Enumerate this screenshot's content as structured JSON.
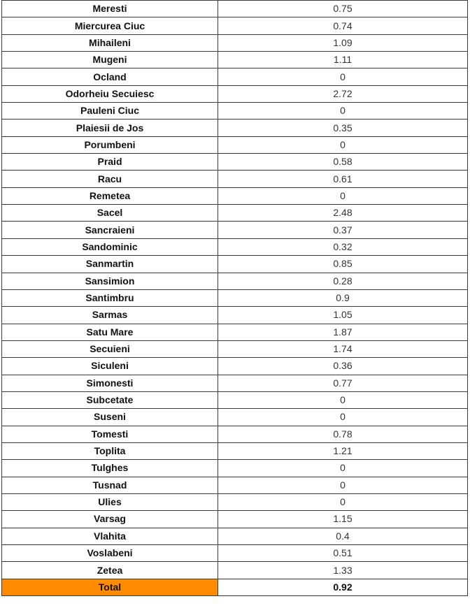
{
  "table": {
    "rows": [
      {
        "name": "Meresti",
        "value": "0.75"
      },
      {
        "name": "Miercurea Ciuc",
        "value": "0.74"
      },
      {
        "name": "Mihaileni",
        "value": "1.09"
      },
      {
        "name": "Mugeni",
        "value": "1.11"
      },
      {
        "name": "Ocland",
        "value": "0"
      },
      {
        "name": "Odorheiu Secuiesc",
        "value": "2.72"
      },
      {
        "name": "Pauleni Ciuc",
        "value": "0"
      },
      {
        "name": "Plaiesii de Jos",
        "value": "0.35"
      },
      {
        "name": "Porumbeni",
        "value": "0"
      },
      {
        "name": "Praid",
        "value": "0.58"
      },
      {
        "name": "Racu",
        "value": "0.61"
      },
      {
        "name": "Remetea",
        "value": "0"
      },
      {
        "name": "Sacel",
        "value": "2.48"
      },
      {
        "name": "Sancraieni",
        "value": "0.37"
      },
      {
        "name": "Sandominic",
        "value": "0.32"
      },
      {
        "name": "Sanmartin",
        "value": "0.85"
      },
      {
        "name": "Sansimion",
        "value": "0.28"
      },
      {
        "name": "Santimbru",
        "value": "0.9"
      },
      {
        "name": "Sarmas",
        "value": "1.05"
      },
      {
        "name": "Satu Mare",
        "value": "1.87"
      },
      {
        "name": "Secuieni",
        "value": "1.74"
      },
      {
        "name": "Siculeni",
        "value": "0.36"
      },
      {
        "name": "Simonesti",
        "value": "0.77"
      },
      {
        "name": "Subcetate",
        "value": "0"
      },
      {
        "name": "Suseni",
        "value": "0"
      },
      {
        "name": "Tomesti",
        "value": "0.78"
      },
      {
        "name": "Toplita",
        "value": "1.21"
      },
      {
        "name": "Tulghes",
        "value": "0"
      },
      {
        "name": "Tusnad",
        "value": "0"
      },
      {
        "name": "Ulies",
        "value": "0"
      },
      {
        "name": "Varsag",
        "value": "1.15"
      },
      {
        "name": "Vlahita",
        "value": "0.4"
      },
      {
        "name": "Voslabeni",
        "value": "0.51"
      },
      {
        "name": "Zetea",
        "value": "1.33"
      }
    ],
    "total": {
      "name": "Total",
      "value": "0.92",
      "highlight_color": "#ff8c00"
    }
  }
}
